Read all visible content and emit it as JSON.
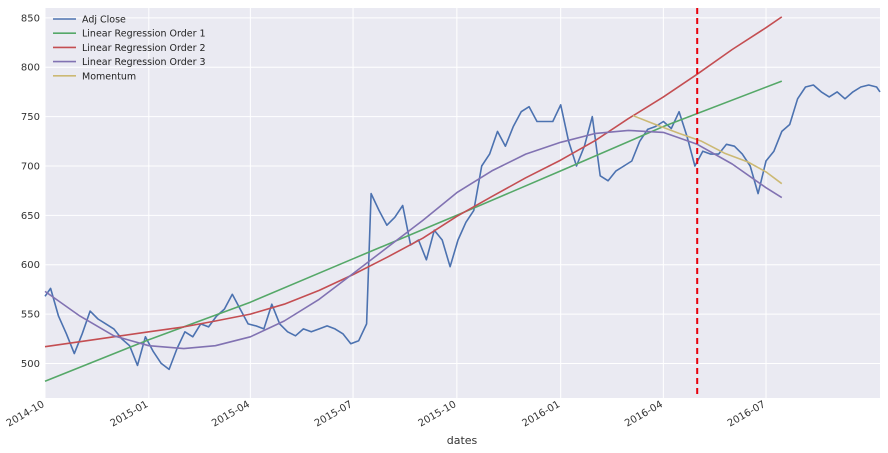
{
  "chart_data": {
    "type": "line",
    "xlabel": "dates",
    "ylabel": "",
    "title": "",
    "x_range": [
      "2014-10-01",
      "2016-10-10"
    ],
    "ylim": [
      465,
      860
    ],
    "x_ticks": [
      {
        "date": "2014-10-01",
        "label": "2014-10"
      },
      {
        "date": "2015-01-01",
        "label": "2015-01"
      },
      {
        "date": "2015-04-01",
        "label": "2015-04"
      },
      {
        "date": "2015-07-01",
        "label": "2015-07"
      },
      {
        "date": "2015-10-01",
        "label": "2015-10"
      },
      {
        "date": "2016-01-01",
        "label": "2016-01"
      },
      {
        "date": "2016-04-01",
        "label": "2016-04"
      },
      {
        "date": "2016-07-01",
        "label": "2016-07"
      }
    ],
    "y_ticks": [
      500,
      550,
      600,
      650,
      700,
      750,
      800,
      850
    ],
    "grid": true,
    "legend_position": "top-left",
    "vline": {
      "date": "2016-05-01",
      "color": "#e8000b"
    },
    "series": [
      {
        "name": "Adj Close",
        "color": "#4c72b0",
        "points": [
          [
            "2014-10-01",
            568
          ],
          [
            "2014-10-06",
            576
          ],
          [
            "2014-10-13",
            548
          ],
          [
            "2014-10-20",
            530
          ],
          [
            "2014-10-27",
            510
          ],
          [
            "2014-11-03",
            530
          ],
          [
            "2014-11-10",
            553
          ],
          [
            "2014-11-17",
            545
          ],
          [
            "2014-11-24",
            540
          ],
          [
            "2014-12-01",
            535
          ],
          [
            "2014-12-08",
            525
          ],
          [
            "2014-12-15",
            518
          ],
          [
            "2014-12-22",
            498
          ],
          [
            "2014-12-29",
            527
          ],
          [
            "2015-01-05",
            512
          ],
          [
            "2015-01-12",
            500
          ],
          [
            "2015-01-19",
            494
          ],
          [
            "2015-01-26",
            515
          ],
          [
            "2015-02-02",
            532
          ],
          [
            "2015-02-09",
            527
          ],
          [
            "2015-02-16",
            540
          ],
          [
            "2015-02-23",
            537
          ],
          [
            "2015-03-02",
            548
          ],
          [
            "2015-03-09",
            555
          ],
          [
            "2015-03-16",
            570
          ],
          [
            "2015-03-23",
            555
          ],
          [
            "2015-03-30",
            540
          ],
          [
            "2015-04-06",
            538
          ],
          [
            "2015-04-13",
            535
          ],
          [
            "2015-04-20",
            560
          ],
          [
            "2015-04-27",
            540
          ],
          [
            "2015-05-04",
            532
          ],
          [
            "2015-05-11",
            528
          ],
          [
            "2015-05-18",
            535
          ],
          [
            "2015-05-25",
            532
          ],
          [
            "2015-06-01",
            535
          ],
          [
            "2015-06-08",
            538
          ],
          [
            "2015-06-15",
            535
          ],
          [
            "2015-06-22",
            530
          ],
          [
            "2015-06-29",
            520
          ],
          [
            "2015-07-06",
            523
          ],
          [
            "2015-07-13",
            540
          ],
          [
            "2015-07-17",
            672
          ],
          [
            "2015-07-24",
            655
          ],
          [
            "2015-07-31",
            640
          ],
          [
            "2015-08-07",
            648
          ],
          [
            "2015-08-14",
            660
          ],
          [
            "2015-08-21",
            620
          ],
          [
            "2015-08-28",
            625
          ],
          [
            "2015-09-04",
            605
          ],
          [
            "2015-09-11",
            635
          ],
          [
            "2015-09-18",
            625
          ],
          [
            "2015-09-25",
            598
          ],
          [
            "2015-10-02",
            625
          ],
          [
            "2015-10-09",
            643
          ],
          [
            "2015-10-16",
            655
          ],
          [
            "2015-10-23",
            700
          ],
          [
            "2015-10-30",
            712
          ],
          [
            "2015-11-06",
            735
          ],
          [
            "2015-11-13",
            720
          ],
          [
            "2015-11-20",
            740
          ],
          [
            "2015-11-27",
            755
          ],
          [
            "2015-12-04",
            760
          ],
          [
            "2015-12-11",
            745
          ],
          [
            "2015-12-18",
            745
          ],
          [
            "2015-12-25",
            745
          ],
          [
            "2016-01-01",
            762
          ],
          [
            "2016-01-08",
            725
          ],
          [
            "2016-01-15",
            700
          ],
          [
            "2016-01-22",
            720
          ],
          [
            "2016-01-29",
            750
          ],
          [
            "2016-02-05",
            690
          ],
          [
            "2016-02-12",
            685
          ],
          [
            "2016-02-19",
            695
          ],
          [
            "2016-02-26",
            700
          ],
          [
            "2016-03-04",
            705
          ],
          [
            "2016-03-11",
            725
          ],
          [
            "2016-03-18",
            737
          ],
          [
            "2016-03-25",
            740
          ],
          [
            "2016-04-01",
            745
          ],
          [
            "2016-04-08",
            738
          ],
          [
            "2016-04-15",
            755
          ],
          [
            "2016-04-22",
            730
          ],
          [
            "2016-04-29",
            700
          ],
          [
            "2016-05-06",
            715
          ],
          [
            "2016-05-13",
            712
          ],
          [
            "2016-05-20",
            712
          ],
          [
            "2016-05-27",
            722
          ],
          [
            "2016-06-03",
            720
          ],
          [
            "2016-06-10",
            712
          ],
          [
            "2016-06-17",
            700
          ],
          [
            "2016-06-24",
            672
          ],
          [
            "2016-07-01",
            705
          ],
          [
            "2016-07-08",
            715
          ],
          [
            "2016-07-15",
            735
          ],
          [
            "2016-07-22",
            742
          ],
          [
            "2016-07-29",
            768
          ],
          [
            "2016-08-05",
            780
          ],
          [
            "2016-08-12",
            782
          ],
          [
            "2016-08-19",
            775
          ],
          [
            "2016-08-26",
            770
          ],
          [
            "2016-09-02",
            775
          ],
          [
            "2016-09-09",
            768
          ],
          [
            "2016-09-16",
            775
          ],
          [
            "2016-09-23",
            780
          ],
          [
            "2016-09-30",
            782
          ],
          [
            "2016-10-07",
            780
          ],
          [
            "2016-10-10",
            775
          ]
        ]
      },
      {
        "name": "Linear Regression Order 1",
        "color": "#55a868",
        "points": [
          [
            "2014-10-01",
            482
          ],
          [
            "2015-01-01",
            524
          ],
          [
            "2015-04-01",
            562
          ],
          [
            "2015-07-01",
            606
          ],
          [
            "2015-10-01",
            650
          ],
          [
            "2016-01-01",
            695
          ],
          [
            "2016-04-01",
            740
          ],
          [
            "2016-07-15",
            786
          ]
        ]
      },
      {
        "name": "Linear Regression Order 2",
        "color": "#c44e52",
        "points": [
          [
            "2014-10-01",
            517
          ],
          [
            "2014-11-01",
            522
          ],
          [
            "2014-12-01",
            527
          ],
          [
            "2015-01-01",
            532
          ],
          [
            "2015-02-01",
            537
          ],
          [
            "2015-03-01",
            543
          ],
          [
            "2015-04-01",
            550
          ],
          [
            "2015-05-01",
            560
          ],
          [
            "2015-06-01",
            574
          ],
          [
            "2015-07-01",
            590
          ],
          [
            "2015-08-01",
            608
          ],
          [
            "2015-09-01",
            627
          ],
          [
            "2015-10-01",
            649
          ],
          [
            "2015-11-01",
            669
          ],
          [
            "2015-12-01",
            688
          ],
          [
            "2016-01-01",
            706
          ],
          [
            "2016-02-01",
            726
          ],
          [
            "2016-03-01",
            748
          ],
          [
            "2016-04-01",
            770
          ],
          [
            "2016-05-01",
            793
          ],
          [
            "2016-06-01",
            818
          ],
          [
            "2016-07-01",
            840
          ],
          [
            "2016-07-15",
            851
          ]
        ]
      },
      {
        "name": "Linear Regression Order 3",
        "color": "#8172b2",
        "points": [
          [
            "2014-10-01",
            573
          ],
          [
            "2014-11-01",
            548
          ],
          [
            "2014-12-01",
            528
          ],
          [
            "2015-01-01",
            518
          ],
          [
            "2015-02-01",
            515
          ],
          [
            "2015-03-01",
            518
          ],
          [
            "2015-04-01",
            527
          ],
          [
            "2015-05-01",
            543
          ],
          [
            "2015-06-01",
            565
          ],
          [
            "2015-07-01",
            591
          ],
          [
            "2015-08-01",
            618
          ],
          [
            "2015-09-01",
            645
          ],
          [
            "2015-10-01",
            673
          ],
          [
            "2015-11-01",
            695
          ],
          [
            "2015-12-01",
            712
          ],
          [
            "2016-01-01",
            724
          ],
          [
            "2016-02-01",
            733
          ],
          [
            "2016-03-01",
            736
          ],
          [
            "2016-04-01",
            734
          ],
          [
            "2016-05-01",
            722
          ],
          [
            "2016-06-01",
            702
          ],
          [
            "2016-07-01",
            678
          ],
          [
            "2016-07-15",
            668
          ]
        ]
      },
      {
        "name": "Momentum",
        "color": "#ccb974",
        "points": [
          [
            "2016-03-05",
            751
          ],
          [
            "2016-03-25",
            742
          ],
          [
            "2016-04-15",
            733
          ],
          [
            "2016-05-05",
            725
          ],
          [
            "2016-05-25",
            713
          ],
          [
            "2016-06-15",
            704
          ],
          [
            "2016-07-01",
            694
          ],
          [
            "2016-07-15",
            682
          ]
        ]
      }
    ]
  }
}
